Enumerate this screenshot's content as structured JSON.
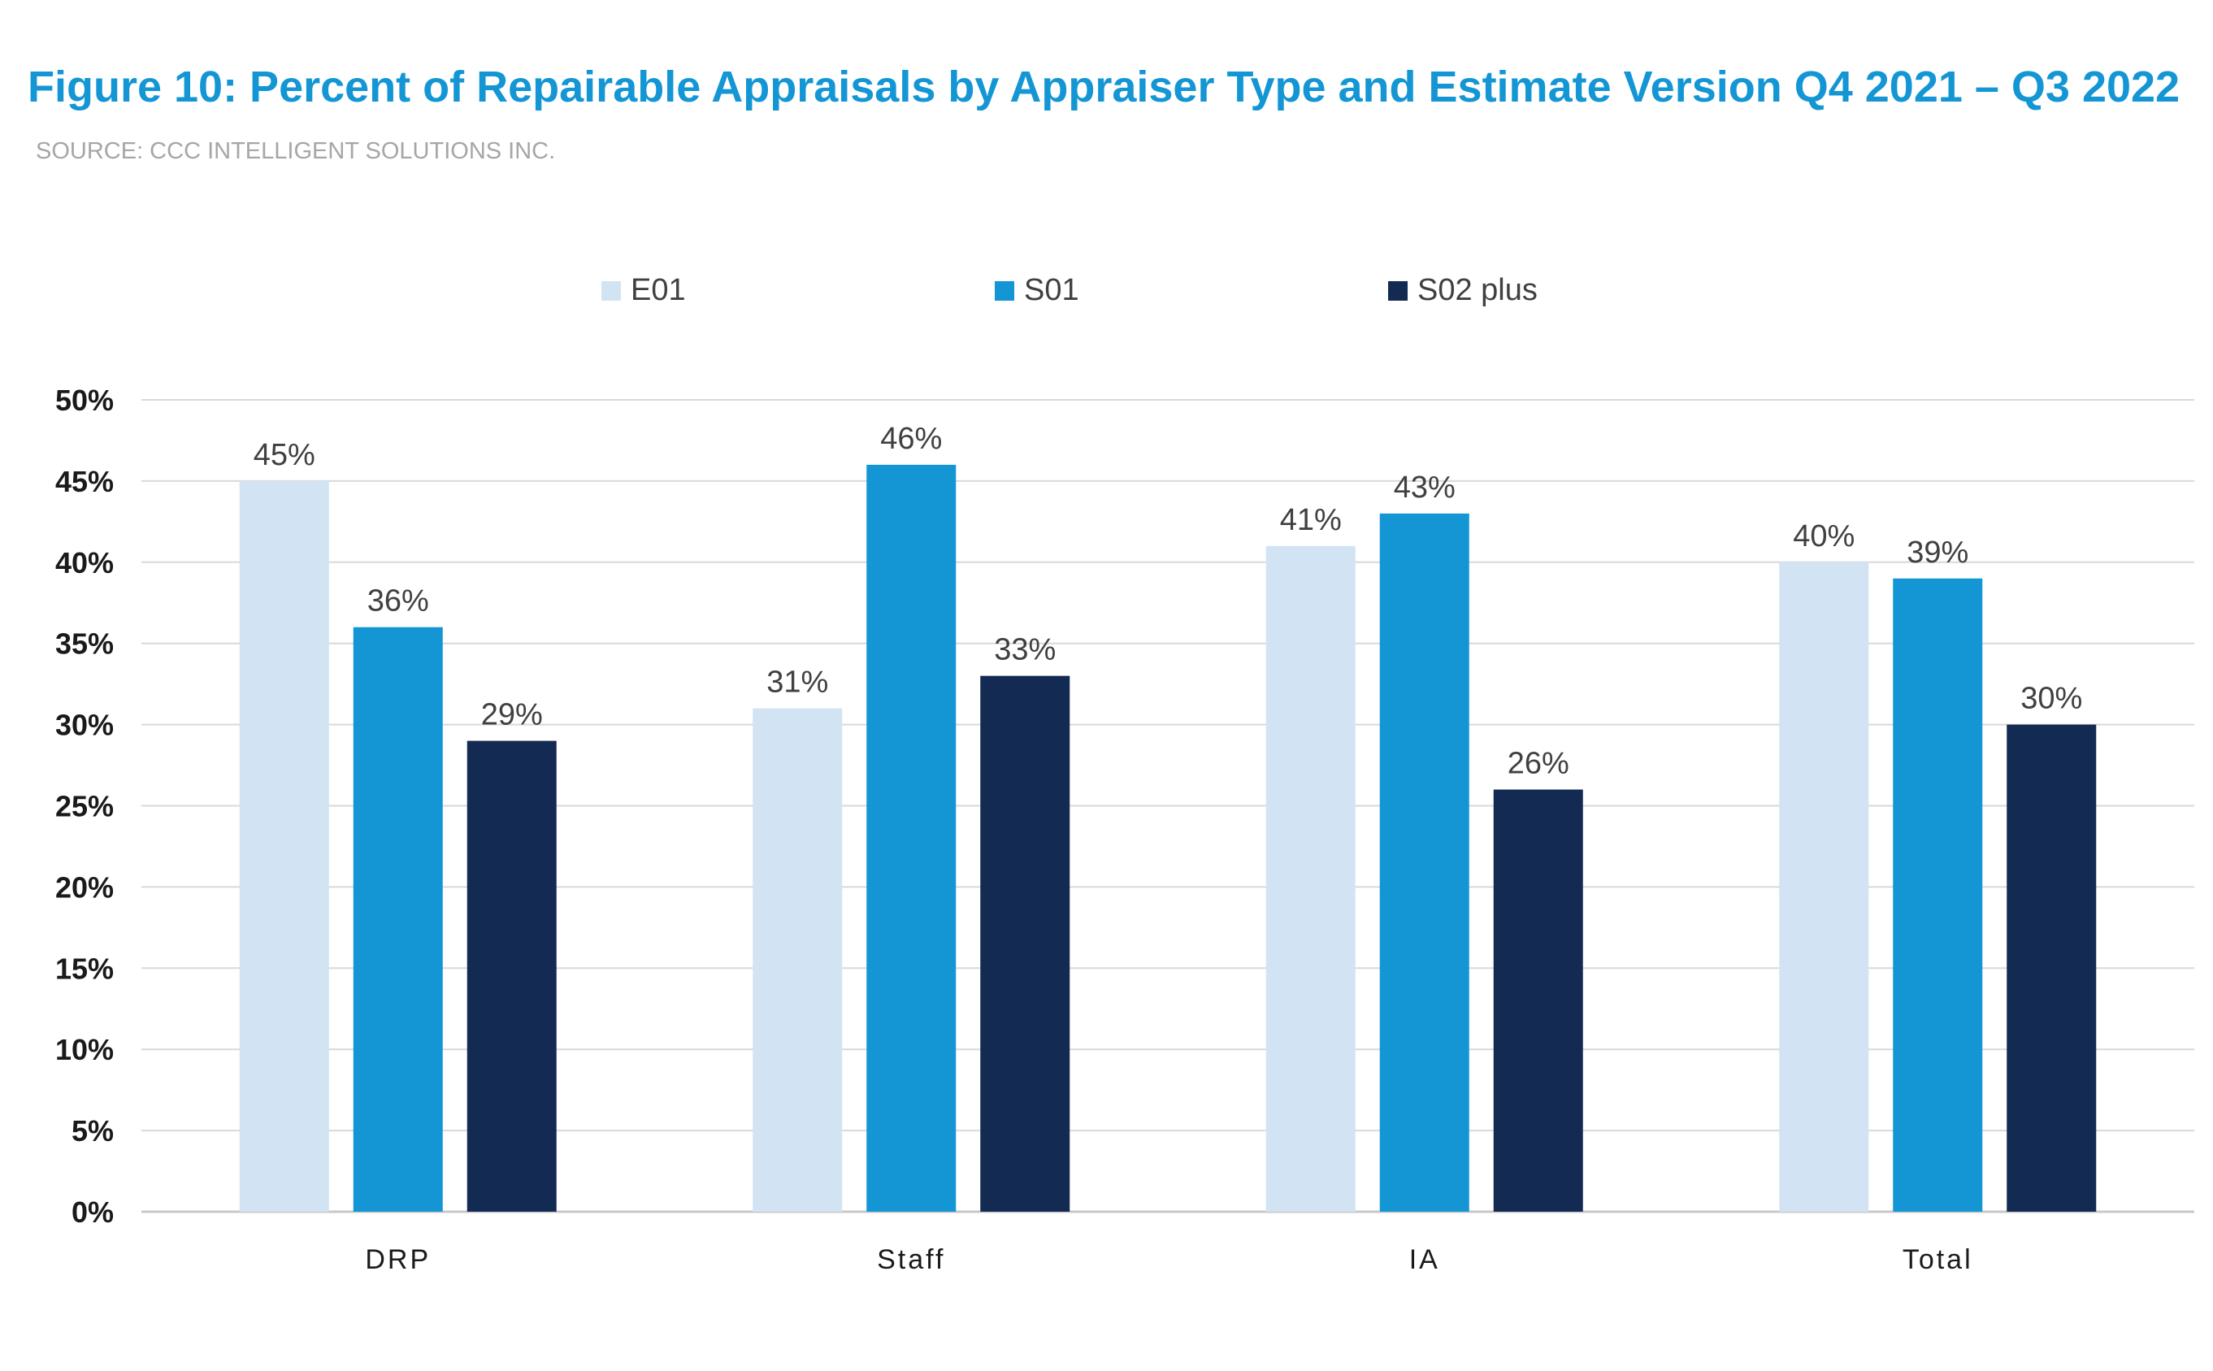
{
  "title": "Figure 10: Percent of Repairable Appraisals by Appraiser Type and Estimate Version Q4 2021 – Q3 2022",
  "source": "SOURCE: CCC INTELLIGENT SOLUTIONS INC.",
  "colors": {
    "title": "#1496d4",
    "source": "#a6a6a6",
    "gridline": "#d9d9d9",
    "axis_text": "#1a1a1a",
    "label_text": "#404040"
  },
  "chart_data": {
    "type": "bar",
    "categories": [
      "DRP",
      "Staff",
      "IA",
      "Total"
    ],
    "series": [
      {
        "name": "E01",
        "color": "#d2e3f3",
        "values": [
          45,
          31,
          41,
          40
        ],
        "labels": [
          "45%",
          "31%",
          "41%",
          "40%"
        ]
      },
      {
        "name": "S01",
        "color": "#1496d4",
        "values": [
          36,
          46,
          43,
          39
        ],
        "labels": [
          "36%",
          "46%",
          "43%",
          "39%"
        ]
      },
      {
        "name": "S02 plus",
        "color": "#132b52",
        "values": [
          29,
          33,
          26,
          30
        ],
        "labels": [
          "29%",
          "33%",
          "26%",
          "30%"
        ]
      }
    ],
    "ylim": [
      0,
      50
    ],
    "yticks": [
      0,
      5,
      10,
      15,
      20,
      25,
      30,
      35,
      40,
      45,
      50
    ],
    "ytick_labels": [
      "0%",
      "5%",
      "10%",
      "15%",
      "20%",
      "25%",
      "30%",
      "35%",
      "40%",
      "45%",
      "50%"
    ],
    "grid": true,
    "legend_position": "top-center",
    "xlabel": "",
    "ylabel": ""
  }
}
